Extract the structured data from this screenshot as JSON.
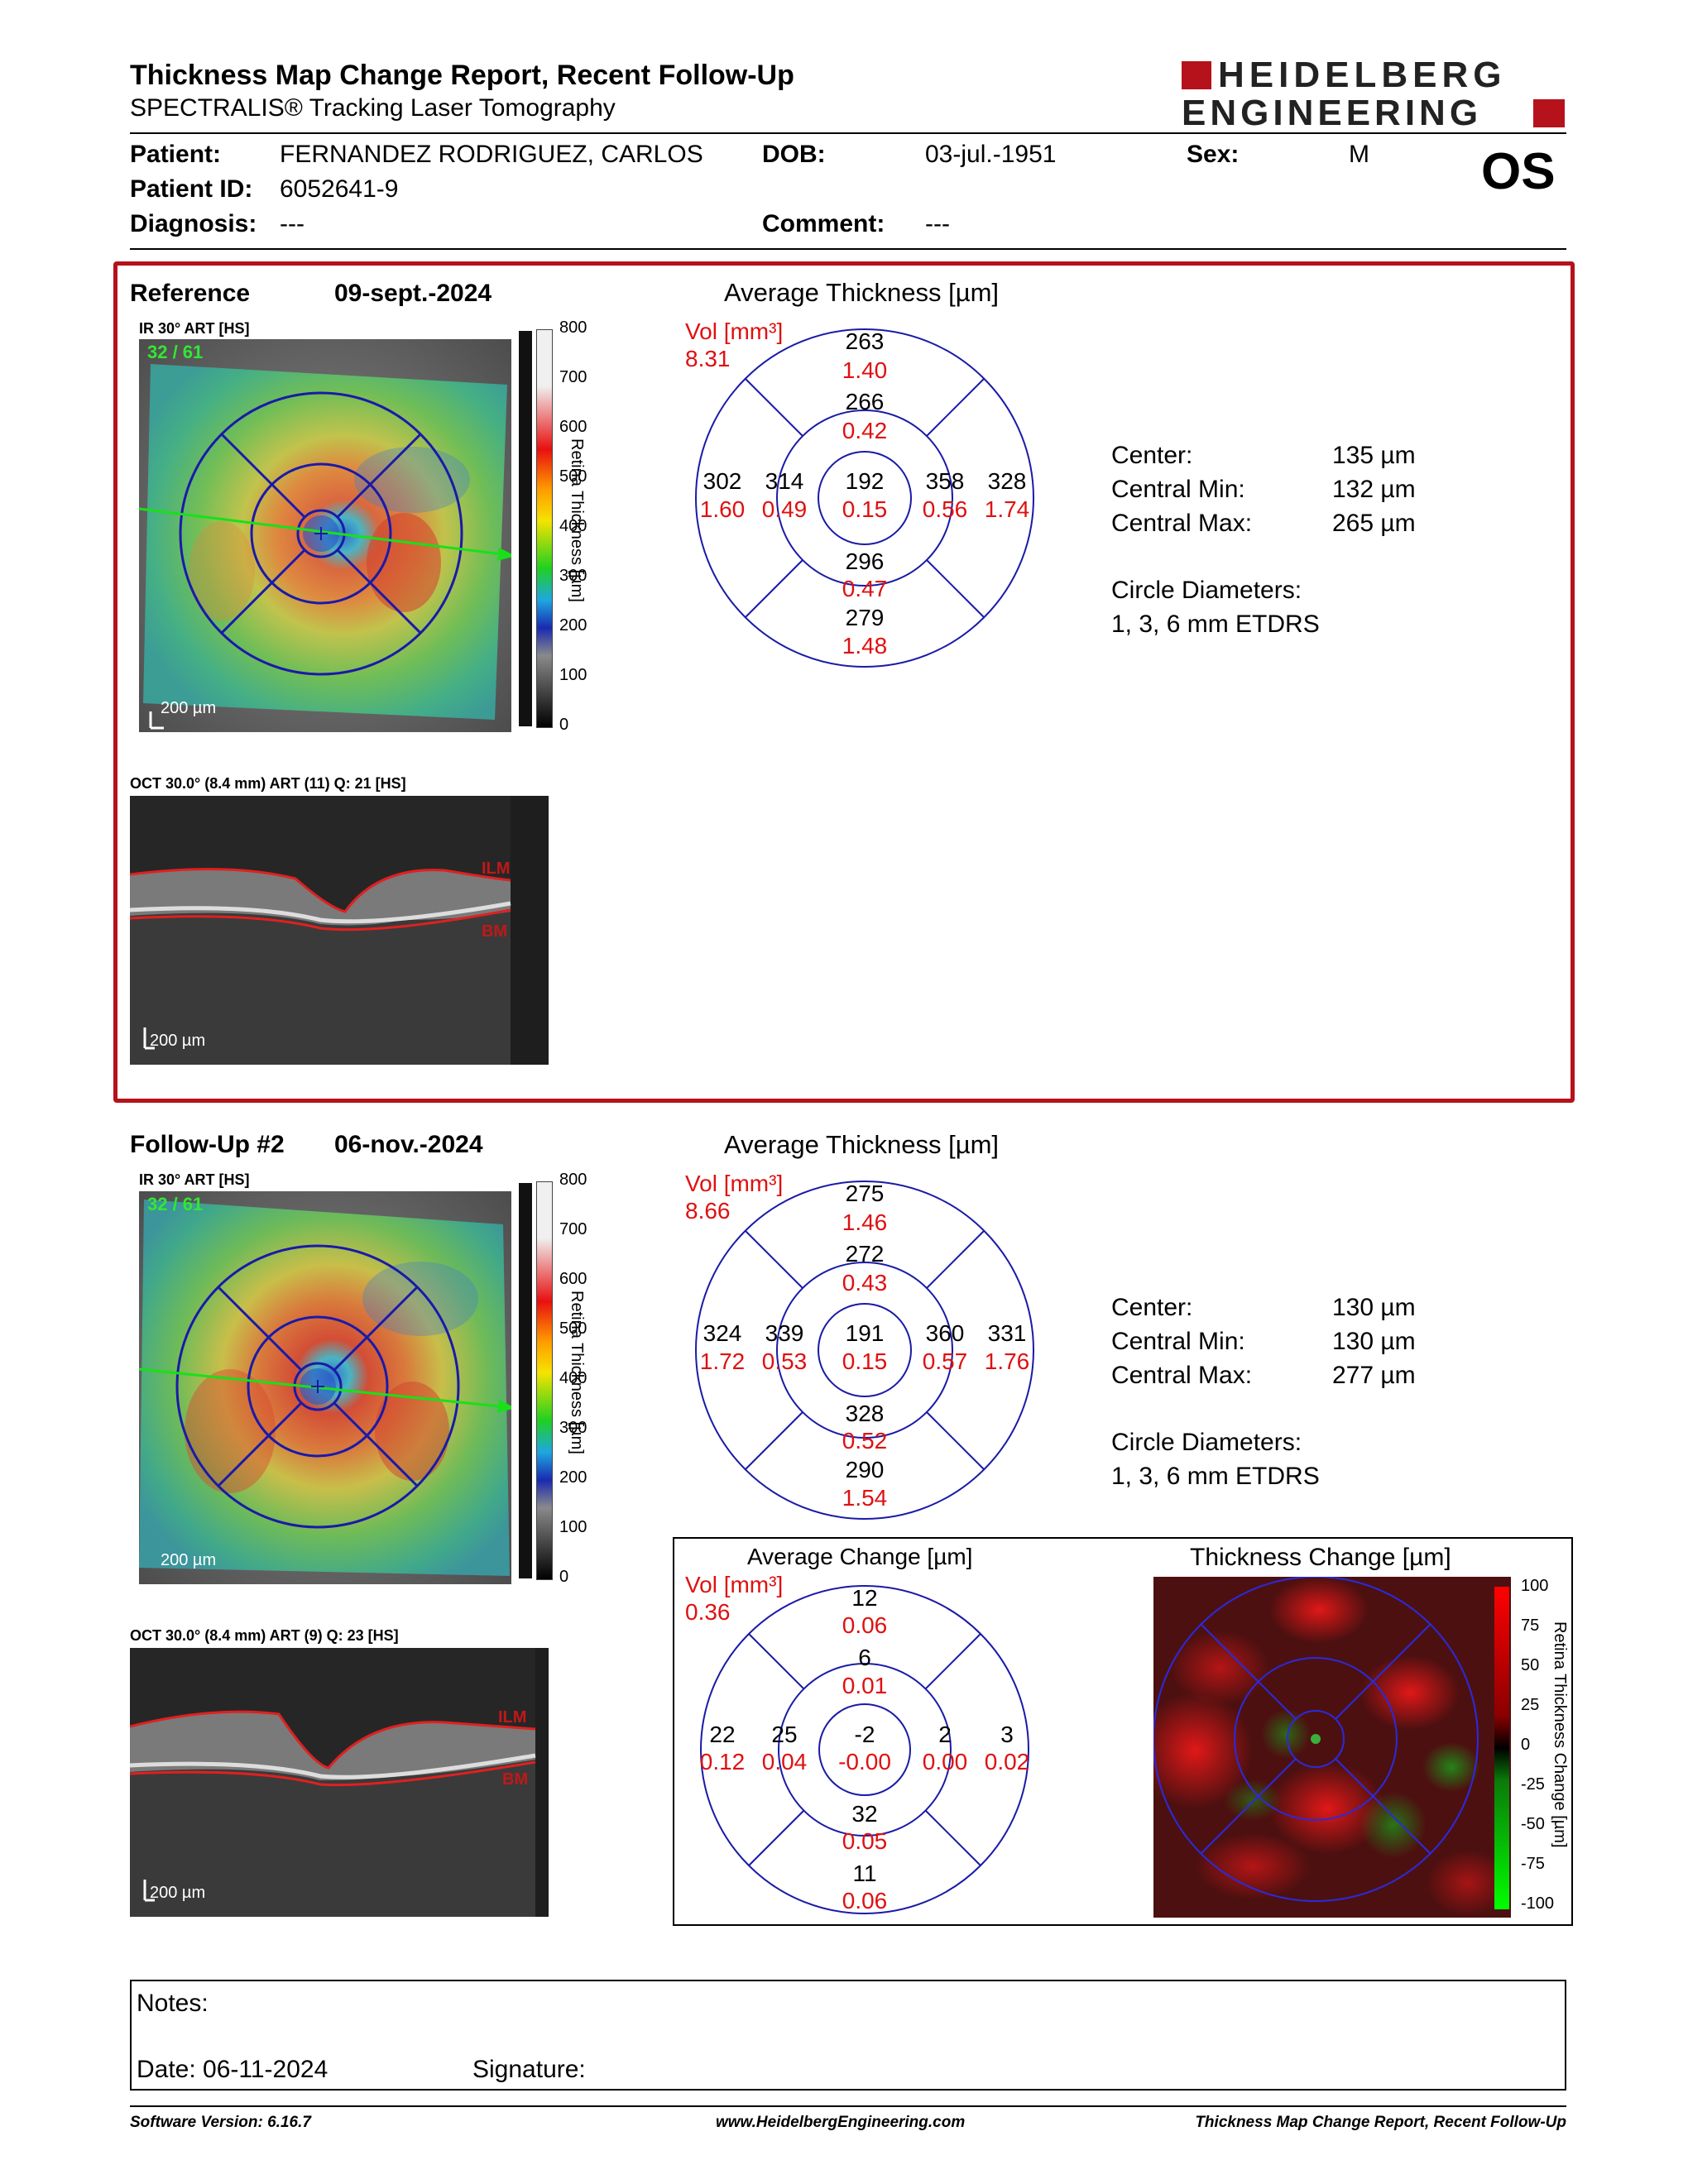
{
  "header": {
    "title": "Thickness Map Change Report, Recent Follow-Up",
    "subtitle": "SPECTRALIS® Tracking Laser Tomography",
    "logo_line1": "HEIDELBERG",
    "logo_line2": "ENGINEERING",
    "eye": "OS"
  },
  "patient": {
    "name_label": "Patient:",
    "name": "FERNANDEZ RODRIGUEZ, CARLOS",
    "dob_label": "DOB:",
    "dob": "03-jul.-1951",
    "sex_label": "Sex:",
    "sex": "M",
    "id_label": "Patient ID:",
    "id": "6052641-9",
    "diagnosis_label": "Diagnosis:",
    "diagnosis": "---",
    "comment_label": "Comment:",
    "comment": "---"
  },
  "reference": {
    "label": "Reference",
    "date": "09-sept.-2024",
    "ir_label": "IR 30° ART [HS]",
    "ir_counter": "32 / 61",
    "scale_label": "200 µm",
    "oct_label": "OCT 30.0° (8.4 mm) ART (11) Q: 21 [HS]",
    "oct_scale": "200 µm",
    "ilm": "ILM",
    "bm": "BM",
    "colorbar_ticks": [
      "800",
      "700",
      "600",
      "500",
      "400",
      "300",
      "200",
      "100",
      "0"
    ],
    "colorbar_title": "Retina Thickness [µm]",
    "chart_title": "Average Thickness [µm]",
    "vol_label": "Vol [mm³]",
    "vol_total": "8.31",
    "grid": {
      "outer_superior": [
        "263",
        "1.40"
      ],
      "inner_superior": [
        "266",
        "0.42"
      ],
      "outer_temporal": [
        "302",
        "1.60"
      ],
      "inner_temporal": [
        "314",
        "0.49"
      ],
      "center": [
        "192",
        "0.15"
      ],
      "inner_nasal": [
        "358",
        "0.56"
      ],
      "outer_nasal": [
        "328",
        "1.74"
      ],
      "inner_inferior": [
        "296",
        "0.47"
      ],
      "outer_inferior": [
        "279",
        "1.48"
      ]
    },
    "stats": [
      {
        "label": "Center:",
        "value": "135 µm"
      },
      {
        "label": "Central Min:",
        "value": "132 µm"
      },
      {
        "label": "Central Max:",
        "value": "265 µm"
      }
    ],
    "diam_label": "Circle Diameters:",
    "diam_value": "1, 3, 6 mm ETDRS"
  },
  "followup": {
    "label": "Follow-Up #2",
    "date": "06-nov.-2024",
    "ir_label": "IR 30° ART [HS]",
    "ir_counter": "32 / 61",
    "scale_label": "200 µm",
    "oct_label": "OCT 30.0° (8.4 mm) ART (9) Q: 23 [HS]",
    "oct_scale": "200 µm",
    "ilm": "ILM",
    "bm": "BM",
    "colorbar_ticks": [
      "800",
      "700",
      "600",
      "500",
      "400",
      "300",
      "200",
      "100",
      "0"
    ],
    "colorbar_title": "Retina Thickness [µm]",
    "chart_title": "Average Thickness [µm]",
    "vol_label": "Vol [mm³]",
    "vol_total": "8.66",
    "grid": {
      "outer_superior": [
        "275",
        "1.46"
      ],
      "inner_superior": [
        "272",
        "0.43"
      ],
      "outer_temporal": [
        "324",
        "1.72"
      ],
      "inner_temporal": [
        "339",
        "0.53"
      ],
      "center": [
        "191",
        "0.15"
      ],
      "inner_nasal": [
        "360",
        "0.57"
      ],
      "outer_nasal": [
        "331",
        "1.76"
      ],
      "inner_inferior": [
        "328",
        "0.52"
      ],
      "outer_inferior": [
        "290",
        "1.54"
      ]
    },
    "stats": [
      {
        "label": "Center:",
        "value": "130 µm"
      },
      {
        "label": "Central Min:",
        "value": "130 µm"
      },
      {
        "label": "Central Max:",
        "value": "277 µm"
      }
    ],
    "diam_label": "Circle Diameters:",
    "diam_value": "1, 3, 6 mm ETDRS"
  },
  "change": {
    "chart_title": "Average Change [µm]",
    "vol_label": "Vol [mm³]",
    "vol_total": "0.36",
    "grid": {
      "outer_superior": [
        "12",
        "0.06"
      ],
      "inner_superior": [
        "6",
        "0.01"
      ],
      "outer_temporal": [
        "22",
        "0.12"
      ],
      "inner_temporal": [
        "25",
        "0.04"
      ],
      "center": [
        "-2",
        "-0.00"
      ],
      "inner_nasal": [
        "2",
        "0.00"
      ],
      "outer_nasal": [
        "3",
        "0.02"
      ],
      "inner_inferior": [
        "32",
        "0.05"
      ],
      "outer_inferior": [
        "11",
        "0.06"
      ]
    },
    "map_title": "Thickness Change [µm]",
    "colorbar_ticks": [
      "100",
      "75",
      "50",
      "25",
      "0",
      "-25",
      "-50",
      "-75",
      "-100"
    ],
    "colorbar_title": "Retina Thickness Change [µm]"
  },
  "notes": {
    "notes_label": "Notes:",
    "date_label": "Date: 06-11-2024",
    "signature_label": "Signature:"
  },
  "footer": {
    "software": "Software Version: 6.16.7",
    "website": "www.HeidelbergEngineering.com",
    "report": "Thickness Map Change Report, Recent Follow-Up"
  },
  "colors": {
    "accent_red": "#b5121b",
    "grid_blue": "#1a1aa8",
    "volume_red": "#e01010"
  }
}
